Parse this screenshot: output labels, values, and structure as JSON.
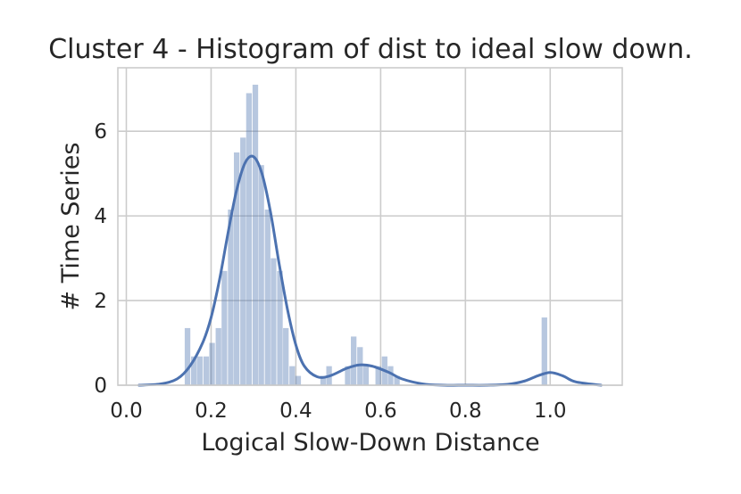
{
  "chart_data": {
    "type": "bar",
    "title": "Cluster 4 - Histogram of dist to ideal slow down.",
    "xlabel": "Logical Slow-Down Distance",
    "ylabel": "# Time Series",
    "xlim": [
      -0.02,
      1.17
    ],
    "ylim": [
      0,
      7.5
    ],
    "xticks": [
      0.0,
      0.2,
      0.4,
      0.6,
      0.8,
      1.0
    ],
    "xtick_labels": [
      "0.0",
      "0.2",
      "0.4",
      "0.6",
      "0.8",
      "1.0"
    ],
    "yticks": [
      0,
      2,
      4,
      6
    ],
    "ytick_labels": [
      "0",
      "2",
      "4",
      "6"
    ],
    "grid": true,
    "bar_color": "#4c72b0",
    "bar_alpha": 0.4,
    "line_color": "#4c72b0",
    "series": [
      {
        "kind": "histogram",
        "bin_width": 0.0145,
        "bins": [
          {
            "x": 0.145,
            "value": 1.35
          },
          {
            "x": 0.16,
            "value": 0.68
          },
          {
            "x": 0.174,
            "value": 0.68
          },
          {
            "x": 0.189,
            "value": 0.68
          },
          {
            "x": 0.203,
            "value": 1.0
          },
          {
            "x": 0.218,
            "value": 1.35
          },
          {
            "x": 0.232,
            "value": 2.7
          },
          {
            "x": 0.247,
            "value": 4.15
          },
          {
            "x": 0.261,
            "value": 5.5
          },
          {
            "x": 0.276,
            "value": 5.85
          },
          {
            "x": 0.29,
            "value": 6.9
          },
          {
            "x": 0.305,
            "value": 7.1
          },
          {
            "x": 0.319,
            "value": 5.2
          },
          {
            "x": 0.334,
            "value": 4.15
          },
          {
            "x": 0.348,
            "value": 3.0
          },
          {
            "x": 0.363,
            "value": 2.7
          },
          {
            "x": 0.377,
            "value": 1.35
          },
          {
            "x": 0.392,
            "value": 0.45
          },
          {
            "x": 0.406,
            "value": 0.22
          },
          {
            "x": 0.465,
            "value": 0.22
          },
          {
            "x": 0.479,
            "value": 0.45
          },
          {
            "x": 0.523,
            "value": 0.45
          },
          {
            "x": 0.537,
            "value": 1.15
          },
          {
            "x": 0.552,
            "value": 0.9
          },
          {
            "x": 0.566,
            "value": 0.45
          },
          {
            "x": 0.595,
            "value": 0.45
          },
          {
            "x": 0.61,
            "value": 0.68
          },
          {
            "x": 0.624,
            "value": 0.45
          },
          {
            "x": 0.639,
            "value": 0.22
          },
          {
            "x": 0.987,
            "value": 1.6
          }
        ]
      },
      {
        "kind": "kde",
        "x": [
          0.03,
          0.08,
          0.12,
          0.15,
          0.18,
          0.2,
          0.22,
          0.24,
          0.26,
          0.28,
          0.3,
          0.32,
          0.34,
          0.36,
          0.38,
          0.4,
          0.42,
          0.45,
          0.48,
          0.52,
          0.55,
          0.58,
          0.62,
          0.65,
          0.7,
          0.75,
          0.8,
          0.85,
          0.9,
          0.94,
          0.97,
          1.0,
          1.03,
          1.06,
          1.12
        ],
        "y": [
          0.0,
          0.03,
          0.15,
          0.45,
          1.0,
          1.6,
          2.5,
          3.6,
          4.6,
          5.25,
          5.4,
          5.0,
          4.1,
          2.9,
          1.8,
          0.95,
          0.45,
          0.2,
          0.22,
          0.4,
          0.48,
          0.45,
          0.3,
          0.15,
          0.03,
          0.0,
          0.0,
          0.0,
          0.02,
          0.1,
          0.22,
          0.3,
          0.22,
          0.08,
          0.0
        ]
      }
    ]
  }
}
